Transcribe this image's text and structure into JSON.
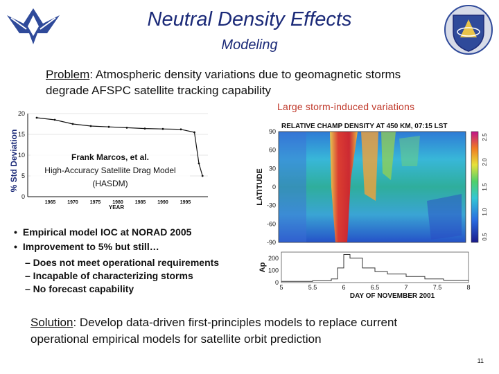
{
  "header": {
    "title": "Neutral Density Effects",
    "subtitle": "Modeling"
  },
  "problem": {
    "label": "Problem",
    "text_line1": ": Atmospheric density variations due to geomagnetic storms",
    "text_line2": "degrade AFSPC satellite tracking capability"
  },
  "storm_label": "Large storm-induced variations",
  "left_chart": {
    "ylabel": "% Std Deviation",
    "xlabel": "YEAR",
    "y_ticks": [
      "0",
      "5",
      "10",
      "15",
      "20"
    ],
    "x_ticks": [
      "1965",
      "1970",
      "1975",
      "1980",
      "1985",
      "1990",
      "1995"
    ],
    "credit_name": "Frank Marcos, et al.",
    "credit_line2": "High-Accuracy Satellite Drag Model",
    "credit_line3": "(HASDM)"
  },
  "chart_data": [
    {
      "type": "line",
      "title": "",
      "xlabel": "YEAR",
      "ylabel": "% Std Deviation",
      "x": [
        1962,
        1966,
        1970,
        1974,
        1978,
        1982,
        1986,
        1990,
        1994,
        1997,
        1998,
        1998.8
      ],
      "values": [
        19,
        18.5,
        17.5,
        17,
        16.8,
        16.6,
        16.4,
        16.3,
        16.2,
        15.5,
        8,
        5
      ],
      "xlim": [
        1960,
        2000
      ],
      "ylim": [
        0,
        20
      ]
    },
    {
      "type": "heatmap",
      "title": "RELATIVE CHAMP DENSITY AT 450 KM, 07:15 LST",
      "ylabel": "LATITUDE",
      "y_ticks": [
        "90",
        "60",
        "30",
        "0",
        "-30",
        "-60",
        "-90"
      ],
      "colorbar_ticks": [
        "2.5",
        "2.0",
        "1.5",
        "1.0",
        "0.5"
      ]
    },
    {
      "type": "line",
      "title": "",
      "xlabel": "DAY OF NOVEMBER 2001",
      "ylabel": "Ap",
      "x": [
        5,
        5.5,
        5.8,
        5.9,
        6.0,
        6.1,
        6.3,
        6.5,
        6.7,
        7.0,
        7.3,
        7.6,
        8.0
      ],
      "values": [
        10,
        15,
        30,
        120,
        230,
        200,
        120,
        90,
        70,
        50,
        30,
        20,
        15
      ],
      "x_ticks": [
        "5",
        "5.5",
        "6",
        "6.5",
        "7",
        "7.5",
        "8"
      ],
      "y_ticks": [
        "0",
        "100",
        "200"
      ],
      "ylim": [
        0,
        250
      ]
    }
  ],
  "bullets": [
    "Empirical model IOC at NORAD 2005",
    "Improvement to 5% but still…"
  ],
  "sub_bullets": [
    "– Does not meet operational requirements",
    "– Incapable of characterizing storms",
    "– No forecast capability"
  ],
  "solution": {
    "label": "Solution",
    "text_line1": ": Develop data-driven first-principles models to replace current",
    "text_line2": "operational empirical models for satellite orbit prediction"
  },
  "page_number": "11",
  "colors": {
    "title": "#1b2a78",
    "storm_label": "#c0392b",
    "logo": "#2f4a9a"
  },
  "icons": [
    "air-force-logo-icon",
    "afspc-shield-icon"
  ]
}
